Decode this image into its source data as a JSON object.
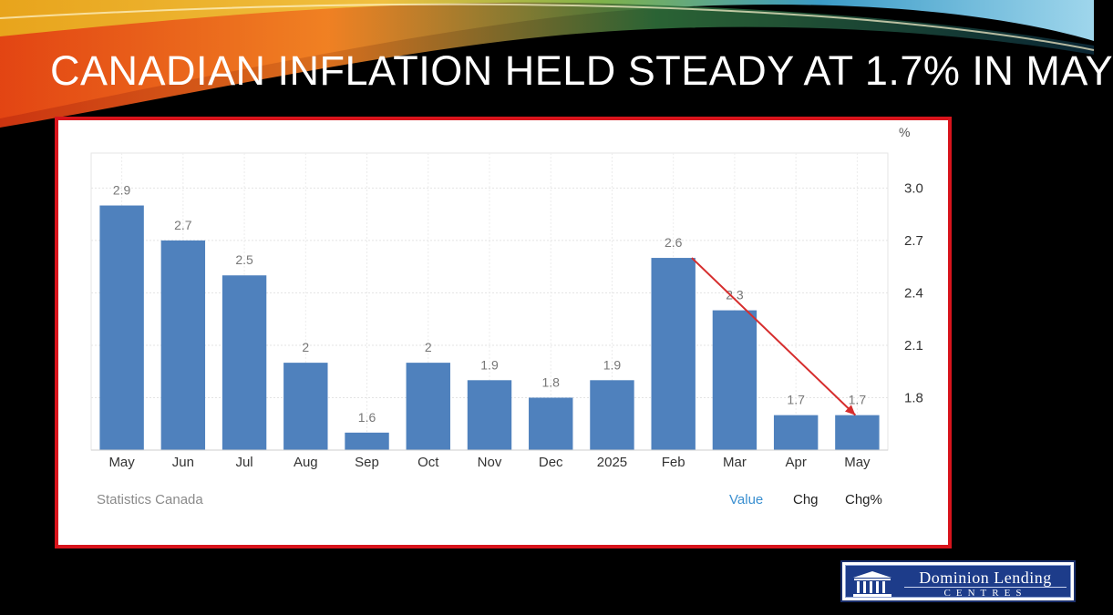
{
  "slide": {
    "title": "CANADIAN INFLATION HELD STEADY AT 1.7% IN MAY"
  },
  "chart_data": {
    "type": "bar",
    "title": "",
    "unit_label": "%",
    "categories": [
      "May",
      "Jun",
      "Jul",
      "Aug",
      "Sep",
      "Oct",
      "Nov",
      "Dec",
      "2025",
      "Feb",
      "Mar",
      "Apr",
      "May"
    ],
    "values": [
      2.9,
      2.7,
      2.5,
      2,
      1.6,
      2,
      1.9,
      1.8,
      1.9,
      2.6,
      2.3,
      1.7,
      1.7
    ],
    "data_labels": [
      "2.9",
      "2.7",
      "2.5",
      "2",
      "1.6",
      "2",
      "1.9",
      "1.8",
      "1.9",
      "2.6",
      "2.3",
      "1.7",
      "1.7"
    ],
    "y_ticks": [
      1.8,
      2.1,
      2.4,
      2.7,
      3.0
    ],
    "y_tick_labels": [
      "1.8",
      "2.1",
      "2.4",
      "2.7",
      "3.0"
    ],
    "ylim": [
      1.5,
      3.2
    ],
    "y_axis_side": "right",
    "grid": true,
    "bar_color": "#4f81bd",
    "annotation": {
      "type": "arrow",
      "from_category_index": 9,
      "to_category_index": 12,
      "color": "#d62d2d"
    },
    "source": "Statistics Canada",
    "tabs": [
      {
        "label": "Value",
        "active": true
      },
      {
        "label": "Chg",
        "active": false
      },
      {
        "label": "Chg%",
        "active": false
      }
    ],
    "active_tab_color": "#3a8fd0"
  },
  "logo": {
    "line1": "Dominion Lending",
    "line2": "CENTRES"
  },
  "colors": {
    "frame_border": "#d8141c",
    "background": "#000000"
  }
}
